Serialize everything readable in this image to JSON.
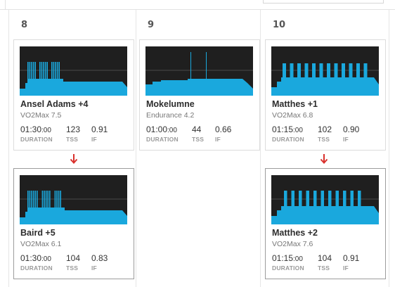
{
  "calendar": {
    "days": [
      {
        "number": "8"
      },
      {
        "number": "9"
      },
      {
        "number": "10"
      }
    ],
    "accent_color": "#1aa8dd",
    "arrow_color": "#d9302c",
    "workouts": [
      {
        "title": "Ansel Adams +4",
        "subtitle": "VO2Max 7.5",
        "duration_main": "01:30",
        "duration_sec": ":00",
        "tss": "123",
        "if": "0.91",
        "duration_label": "DURATION",
        "tss_label": "TSS",
        "if_label": "IF"
      },
      {
        "title": "Baird +5",
        "subtitle": "VO2Max 6.1",
        "duration_main": "01:30",
        "duration_sec": ":00",
        "tss": "104",
        "if": "0.83",
        "duration_label": "DURATION",
        "tss_label": "TSS",
        "if_label": "IF"
      },
      {
        "title": "Mokelumne",
        "subtitle": "Endurance 4.2",
        "duration_main": "01:00",
        "duration_sec": ":00",
        "tss": "44",
        "if": "0.66",
        "duration_label": "DURATION",
        "tss_label": "TSS",
        "if_label": "IF"
      },
      {
        "title": "Matthes +1",
        "subtitle": "VO2Max 6.8",
        "duration_main": "01:15",
        "duration_sec": ":00",
        "tss": "102",
        "if": "0.90",
        "duration_label": "DURATION",
        "tss_label": "TSS",
        "if_label": "IF"
      },
      {
        "title": "Matthes +2",
        "subtitle": "VO2Max 7.6",
        "duration_main": "01:15",
        "duration_sec": ":00",
        "tss": "104",
        "if": "0.91",
        "duration_label": "DURATION",
        "tss_label": "TSS",
        "if_label": "IF"
      }
    ]
  }
}
